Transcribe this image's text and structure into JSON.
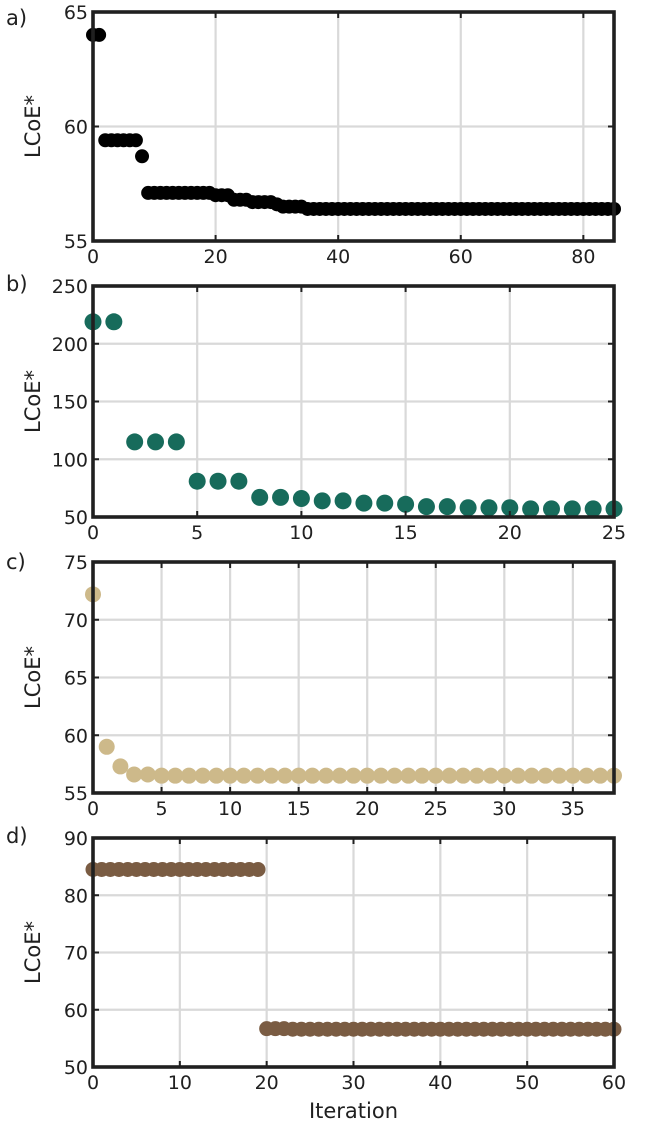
{
  "chart_data": [
    {
      "panel": "a)",
      "type": "scatter",
      "ylabel": "LCoE*",
      "xlabel": "",
      "xlim": [
        0,
        85
      ],
      "ylim": [
        55,
        65
      ],
      "xticks": [
        0,
        20,
        40,
        60,
        80
      ],
      "yticks": [
        55,
        60,
        65
      ],
      "grid": true,
      "color": "#000000",
      "series": [
        {
          "x": [
            0,
            1,
            2,
            3,
            4,
            5,
            6,
            7,
            8,
            9,
            10,
            11,
            12,
            13,
            14,
            15,
            16,
            17,
            18,
            19,
            20,
            21,
            22,
            23,
            24,
            25,
            26,
            27,
            28,
            29,
            30,
            31,
            32,
            33,
            34,
            35,
            36,
            37,
            38,
            39,
            40,
            41,
            42,
            43,
            44,
            45,
            46,
            47,
            48,
            49,
            50,
            51,
            52,
            53,
            54,
            55,
            56,
            57,
            58,
            59,
            60,
            61,
            62,
            63,
            64,
            65,
            66,
            67,
            68,
            69,
            70,
            71,
            72,
            73,
            74,
            75,
            76,
            77,
            78,
            79,
            80,
            81,
            82,
            83,
            84,
            85
          ],
          "y": [
            64.0,
            64.0,
            59.4,
            59.4,
            59.4,
            59.4,
            59.4,
            59.4,
            58.7,
            57.1,
            57.1,
            57.1,
            57.1,
            57.1,
            57.1,
            57.1,
            57.1,
            57.1,
            57.1,
            57.1,
            57.0,
            57.0,
            57.0,
            56.8,
            56.8,
            56.8,
            56.7,
            56.7,
            56.7,
            56.7,
            56.6,
            56.5,
            56.5,
            56.5,
            56.5,
            56.4,
            56.4,
            56.4,
            56.4,
            56.4,
            56.4,
            56.4,
            56.4,
            56.4,
            56.4,
            56.4,
            56.4,
            56.4,
            56.4,
            56.4,
            56.4,
            56.4,
            56.4,
            56.4,
            56.4,
            56.4,
            56.4,
            56.4,
            56.4,
            56.4,
            56.4,
            56.4,
            56.4,
            56.4,
            56.4,
            56.4,
            56.4,
            56.4,
            56.4,
            56.4,
            56.4,
            56.4,
            56.4,
            56.4,
            56.4,
            56.4,
            56.4,
            56.4,
            56.4,
            56.4,
            56.4,
            56.4,
            56.4,
            56.4,
            56.4,
            56.4
          ]
        }
      ]
    },
    {
      "panel": "b)",
      "type": "scatter",
      "ylabel": "LCoE*",
      "xlabel": "",
      "xlim": [
        0,
        25
      ],
      "ylim": [
        50,
        250
      ],
      "xticks": [
        0,
        5,
        10,
        15,
        20,
        25
      ],
      "yticks": [
        50,
        100,
        150,
        200,
        250
      ],
      "grid": true,
      "color": "#176b5b",
      "series": [
        {
          "x": [
            0,
            1,
            2,
            3,
            4,
            5,
            6,
            7,
            8,
            9,
            10,
            11,
            12,
            13,
            14,
            15,
            16,
            17,
            18,
            19,
            20,
            21,
            22,
            23,
            24,
            25
          ],
          "y": [
            219,
            219,
            115,
            115,
            115,
            81,
            81,
            81,
            67,
            67,
            66,
            64,
            64,
            62,
            62,
            61,
            59,
            59,
            58,
            58,
            58,
            57,
            57,
            57,
            57,
            57
          ]
        }
      ]
    },
    {
      "panel": "c)",
      "type": "scatter",
      "ylabel": "LCoE*",
      "xlabel": "",
      "xlim": [
        0,
        38
      ],
      "ylim": [
        55,
        75
      ],
      "xticks": [
        0,
        5,
        10,
        15,
        20,
        25,
        30,
        35
      ],
      "yticks": [
        55,
        60,
        65,
        70,
        75
      ],
      "grid": true,
      "color": "#cdb98a",
      "series": [
        {
          "x": [
            0,
            1,
            2,
            3,
            4,
            5,
            6,
            7,
            8,
            9,
            10,
            11,
            12,
            13,
            14,
            15,
            16,
            17,
            18,
            19,
            20,
            21,
            22,
            23,
            24,
            25,
            26,
            27,
            28,
            29,
            30,
            31,
            32,
            33,
            34,
            35,
            36,
            37,
            38
          ],
          "y": [
            72.2,
            59.0,
            57.3,
            56.6,
            56.6,
            56.5,
            56.5,
            56.5,
            56.5,
            56.5,
            56.5,
            56.5,
            56.5,
            56.5,
            56.5,
            56.5,
            56.5,
            56.5,
            56.5,
            56.5,
            56.5,
            56.5,
            56.5,
            56.5,
            56.5,
            56.5,
            56.5,
            56.5,
            56.5,
            56.5,
            56.5,
            56.5,
            56.5,
            56.5,
            56.5,
            56.5,
            56.5,
            56.5,
            56.5
          ]
        }
      ]
    },
    {
      "panel": "d)",
      "type": "scatter",
      "ylabel": "LCoE*",
      "xlabel": "Iteration",
      "xlim": [
        0,
        60
      ],
      "ylim": [
        50,
        90
      ],
      "xticks": [
        0,
        10,
        20,
        30,
        40,
        50,
        60
      ],
      "yticks": [
        50,
        60,
        70,
        80,
        90
      ],
      "grid": true,
      "color": "#7a5c43",
      "series": [
        {
          "x": [
            0,
            1,
            2,
            3,
            4,
            5,
            6,
            7,
            8,
            9,
            10,
            11,
            12,
            13,
            14,
            15,
            16,
            17,
            18,
            19,
            20,
            21,
            22,
            23,
            24,
            25,
            26,
            27,
            28,
            29,
            30,
            31,
            32,
            33,
            34,
            35,
            36,
            37,
            38,
            39,
            40,
            41,
            42,
            43,
            44,
            45,
            46,
            47,
            48,
            49,
            50,
            51,
            52,
            53,
            54,
            55,
            56,
            57,
            58,
            59,
            60
          ],
          "y": [
            84.5,
            84.5,
            84.5,
            84.5,
            84.5,
            84.5,
            84.5,
            84.5,
            84.5,
            84.5,
            84.5,
            84.5,
            84.5,
            84.5,
            84.5,
            84.5,
            84.5,
            84.5,
            84.5,
            84.5,
            56.7,
            56.7,
            56.7,
            56.6,
            56.6,
            56.6,
            56.6,
            56.6,
            56.6,
            56.6,
            56.6,
            56.6,
            56.6,
            56.6,
            56.6,
            56.6,
            56.6,
            56.6,
            56.6,
            56.6,
            56.6,
            56.6,
            56.6,
            56.6,
            56.6,
            56.6,
            56.6,
            56.6,
            56.6,
            56.6,
            56.6,
            56.6,
            56.6,
            56.6,
            56.6,
            56.6,
            56.6,
            56.6,
            56.6,
            56.6,
            56.6
          ]
        }
      ]
    }
  ]
}
